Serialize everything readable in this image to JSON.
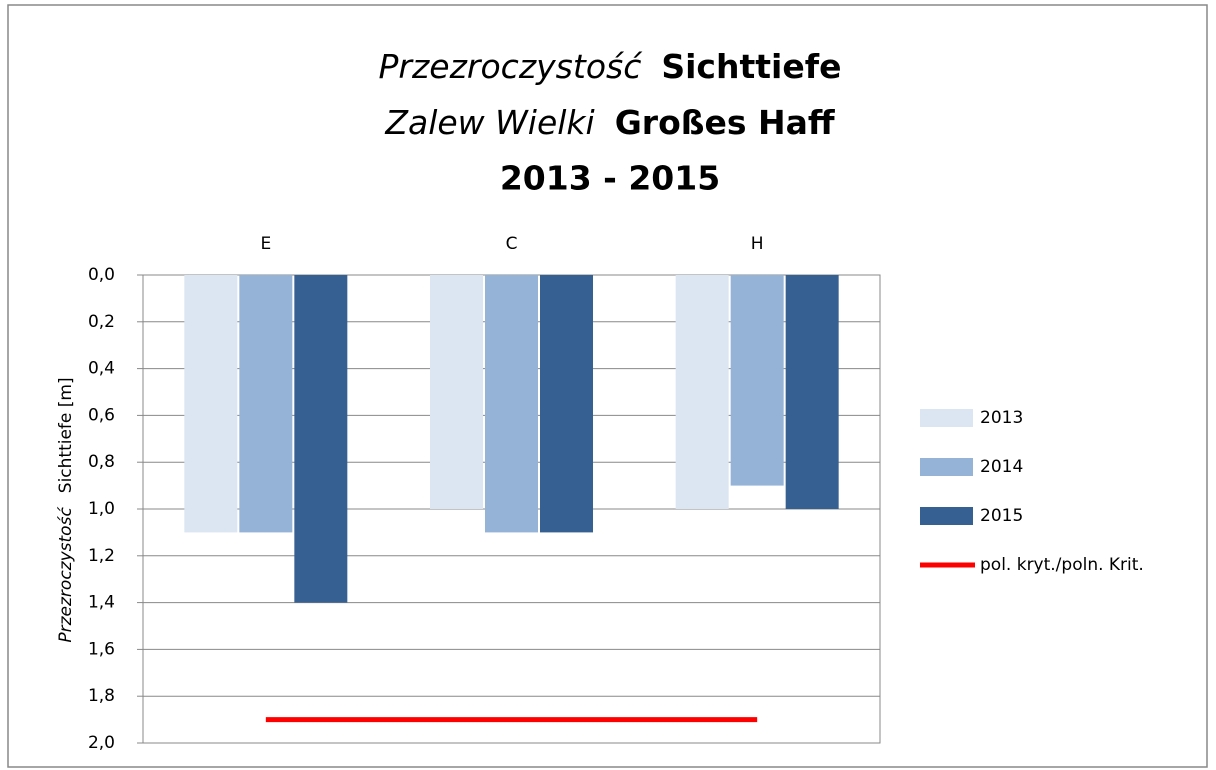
{
  "chart_data": {
    "type": "bar",
    "title": {
      "line1_italic": "Przezroczystość",
      "line1": "Sichttiefe",
      "line2_italic": "Zalew Wielki",
      "line2": "Großes Haff",
      "line3": "2013 - 2015"
    },
    "y_label": {
      "italic": "Przezroczystość",
      "normal": "Sichttiefe [m]"
    },
    "categories": [
      "E",
      "C",
      "H"
    ],
    "series": [
      {
        "name": "2013",
        "color": "#dce6f2",
        "values": [
          1.1,
          1.0,
          1.0
        ]
      },
      {
        "name": "2014",
        "color": "#95b3d7",
        "values": [
          1.1,
          1.1,
          0.9
        ]
      },
      {
        "name": "2015",
        "color": "#376092",
        "values": [
          1.4,
          1.1,
          1.0
        ]
      }
    ],
    "critical": {
      "name": "pol. kryt./poln. Krit.",
      "color": "#ff0000",
      "value": 1.9
    },
    "ylim": [
      0,
      2
    ],
    "y_inverted": true,
    "yticks": [
      {
        "value": 0,
        "label": "0,0"
      },
      {
        "value": 0.2,
        "label": "0,2"
      },
      {
        "value": 0.4,
        "label": "0,4"
      },
      {
        "value": 0.6,
        "label": "0,6"
      },
      {
        "value": 0.8,
        "label": "0,8"
      },
      {
        "value": 1.0,
        "label": "1,0"
      },
      {
        "value": 1.2,
        "label": "1,2"
      },
      {
        "value": 1.4,
        "label": "1,4"
      },
      {
        "value": 1.6,
        "label": "1,6"
      },
      {
        "value": 1.8,
        "label": "1,8"
      },
      {
        "value": 2.0,
        "label": "2,0"
      }
    ],
    "grid": true,
    "legend": "right"
  }
}
